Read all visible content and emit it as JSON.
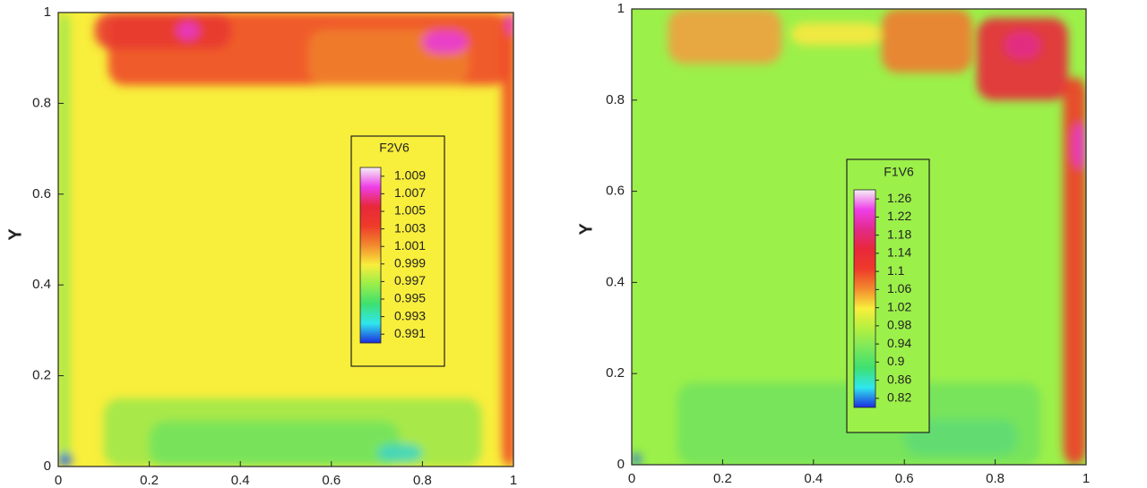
{
  "chart_data": [
    {
      "type": "contour",
      "ylabel": "Y",
      "xlim": [
        0,
        1
      ],
      "ylim": [
        0,
        1
      ],
      "xticks": [
        0,
        0.2,
        0.4,
        0.6,
        0.8,
        1
      ],
      "yticks": [
        0,
        0.2,
        0.4,
        0.6,
        0.8,
        1
      ],
      "background": "#f8ee3c",
      "colorbar": {
        "title": "F2V6",
        "levels": [
          1.009,
          1.007,
          1.005,
          1.003,
          1.001,
          0.999,
          0.997,
          0.995,
          0.993,
          0.991
        ],
        "colormap": [
          "#f6f0f6",
          "#ee3ee8",
          "#e8283a",
          "#ee3a2a",
          "#f28a2e",
          "#f8ee3c",
          "#98ee4a",
          "#3ee070",
          "#30e6ee",
          "#1c2ee0"
        ]
      }
    },
    {
      "type": "contour",
      "ylabel": "Y",
      "xlim": [
        0,
        1
      ],
      "ylim": [
        0,
        1
      ],
      "xticks": [
        0,
        0.2,
        0.4,
        0.6,
        0.8,
        1
      ],
      "yticks": [
        0,
        0.2,
        0.4,
        0.6,
        0.8,
        1
      ],
      "background": "#9cf04a",
      "colorbar": {
        "title": "F1V6",
        "levels": [
          1.26,
          1.22,
          1.18,
          1.14,
          1.1,
          1.06,
          1.02,
          0.98,
          0.94,
          0.9,
          0.86,
          0.82
        ],
        "colormap": [
          "#f6f0f6",
          "#ee3ee8",
          "#e22a8a",
          "#e8283a",
          "#ee3a2a",
          "#f28a2e",
          "#f8ee3c",
          "#b4f040",
          "#7ae85a",
          "#3ee070",
          "#30e6ee",
          "#1c2ee0"
        ]
      }
    }
  ]
}
